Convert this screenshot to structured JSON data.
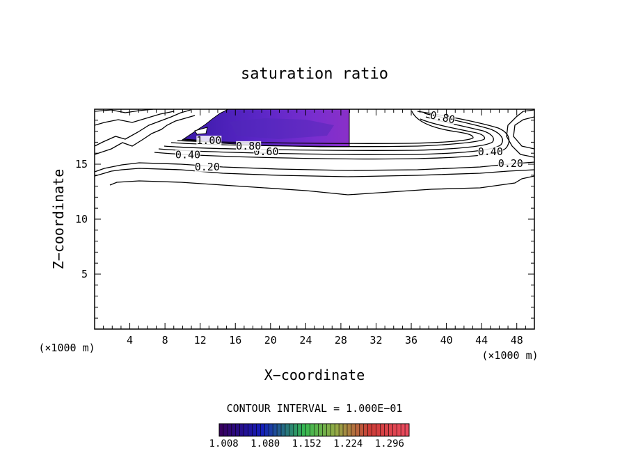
{
  "chart_data": {
    "type": "contour",
    "title": "saturation ratio",
    "xlabel": "X−coordinate",
    "ylabel": "Z−coordinate",
    "x_unit_left": "(×1000 m)",
    "x_unit_right": "(×1000 m)",
    "xlim": [
      0,
      50
    ],
    "ylim": [
      0,
      20
    ],
    "x_ticks": [
      4,
      8,
      12,
      16,
      20,
      24,
      28,
      32,
      36,
      40,
      44,
      48
    ],
    "y_ticks": [
      5,
      10,
      15
    ],
    "x_tick_labels": [
      "4",
      "8",
      "12",
      "16",
      "20",
      "24",
      "28",
      "32",
      "36",
      "40",
      "44",
      "48"
    ],
    "y_tick_labels": [
      "5",
      "10",
      "15"
    ],
    "contour_interval_text": "CONTOUR INTERVAL = 1.000E−01",
    "contour_levels": [
      0.1,
      0.2,
      0.3,
      0.4,
      0.5,
      0.6,
      0.7,
      0.8,
      0.9,
      1.0
    ],
    "contour_labels": [
      {
        "text": "0.20",
        "x": 12.8,
        "z": 14.5
      },
      {
        "text": "0.20",
        "x": 47.3,
        "z": 14.8
      },
      {
        "text": "0.40",
        "x": 10.6,
        "z": 15.6
      },
      {
        "text": "0.40",
        "x": 45.0,
        "z": 15.9
      },
      {
        "text": "0.60",
        "x": 19.5,
        "z": 15.9
      },
      {
        "text": "0.80",
        "x": 17.5,
        "z": 16.4
      },
      {
        "text": "0.80",
        "x": 39.5,
        "z": 19.0
      },
      {
        "text": "1.00",
        "x": 13.0,
        "z": 16.9
      }
    ],
    "colorbar": {
      "tick_labels": [
        "1.008",
        "1.080",
        "1.152",
        "1.224",
        "1.296"
      ],
      "range": [
        1.0,
        1.33
      ]
    },
    "supersaturated_region": {
      "x_range": [
        10.5,
        29.0
      ],
      "z_range": [
        16.5,
        19.8
      ],
      "color": "#6a24c8"
    }
  }
}
